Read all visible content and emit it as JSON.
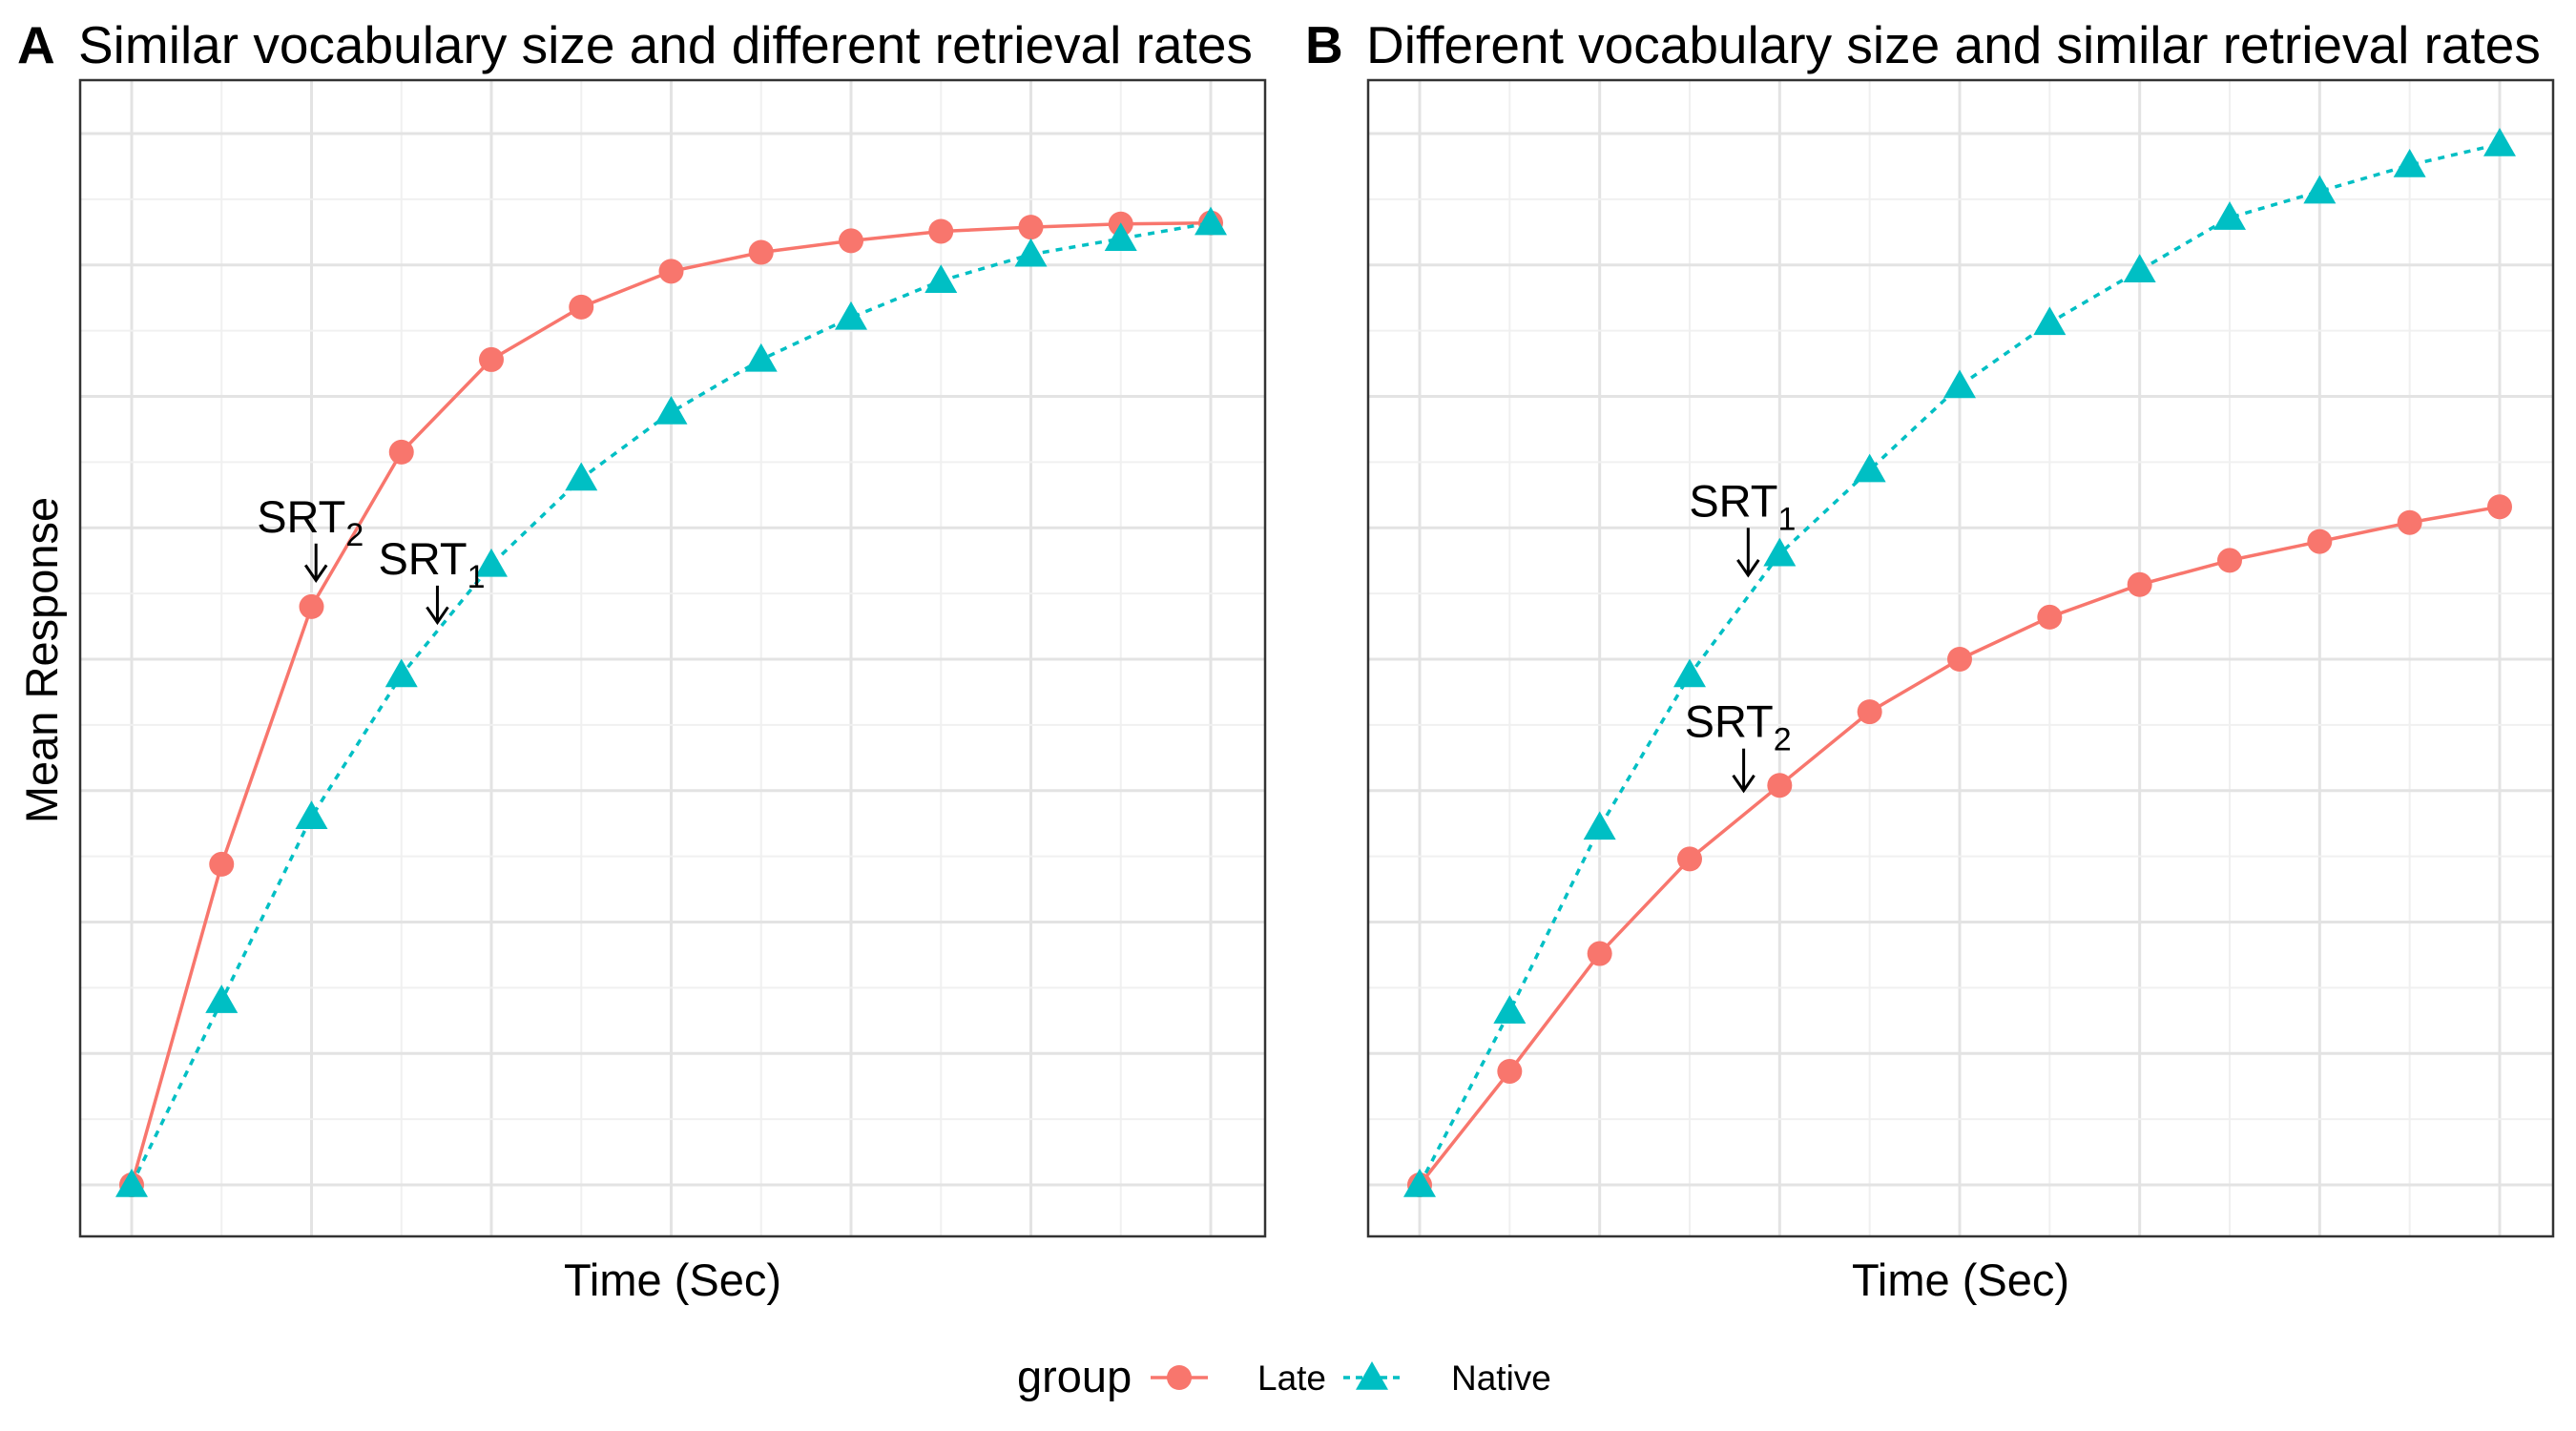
{
  "chart_data": [
    {
      "type": "line",
      "tag": "A",
      "title": "Similar vocabulary size and different retrieval rates",
      "xlabel": "Time (Sec)",
      "ylabel": "Mean Response",
      "grid": true,
      "x_ticks_labeled": false,
      "y_ticks_labeled": false,
      "xlim": [
        0,
        12
      ],
      "ylim": [
        0,
        1
      ],
      "x": [
        0,
        1,
        2,
        3,
        4,
        5,
        6,
        7,
        8,
        9,
        10,
        11,
        12
      ],
      "series": [
        {
          "name": "Late",
          "color": "#F8766D",
          "marker": "circle",
          "line": "solid",
          "values": [
            0.0,
            0.305,
            0.55,
            0.697,
            0.785,
            0.835,
            0.869,
            0.887,
            0.898,
            0.907,
            0.911,
            0.914,
            0.915
          ]
        },
        {
          "name": "Native",
          "color": "#00BFC4",
          "marker": "triangle",
          "line": "dotted",
          "values": [
            0.0,
            0.175,
            0.35,
            0.485,
            0.59,
            0.672,
            0.735,
            0.785,
            0.825,
            0.86,
            0.885,
            0.9,
            0.915
          ]
        }
      ],
      "annotations": [
        {
          "text": "SRT",
          "sub": "2",
          "x": 2.05,
          "y_top": 0.61,
          "y_tip": 0.575
        },
        {
          "text": "SRT",
          "sub": "1",
          "x": 3.4,
          "y_top": 0.57,
          "y_tip": 0.535
        }
      ]
    },
    {
      "type": "line",
      "tag": "B",
      "title": "Different vocabulary size and similar retrieval rates",
      "xlabel": "Time (Sec)",
      "ylabel": "",
      "grid": true,
      "x_ticks_labeled": false,
      "y_ticks_labeled": false,
      "xlim": [
        0,
        12
      ],
      "ylim": [
        0,
        1
      ],
      "x": [
        0,
        1,
        2,
        3,
        4,
        5,
        6,
        7,
        8,
        9,
        10,
        11,
        12
      ],
      "series": [
        {
          "name": "Late",
          "color": "#F8766D",
          "marker": "circle",
          "line": "solid",
          "values": [
            0.0,
            0.108,
            0.22,
            0.31,
            0.38,
            0.45,
            0.5,
            0.54,
            0.571,
            0.594,
            0.612,
            0.63,
            0.645
          ]
        },
        {
          "name": "Native",
          "color": "#00BFC4",
          "marker": "triangle",
          "line": "dotted",
          "values": [
            0.0,
            0.165,
            0.34,
            0.485,
            0.6,
            0.68,
            0.76,
            0.82,
            0.87,
            0.92,
            0.945,
            0.97,
            0.99
          ]
        }
      ],
      "annotations": [
        {
          "text": "SRT",
          "sub": "1",
          "x": 3.65,
          "y_top": 0.625,
          "y_tip": 0.58
        },
        {
          "text": "SRT",
          "sub": "2",
          "x": 3.6,
          "y_top": 0.415,
          "y_tip": 0.375
        }
      ]
    }
  ],
  "legend": {
    "title": "group",
    "placement": "bottom",
    "items": [
      {
        "label": "Late",
        "color": "#F8766D",
        "marker": "circle",
        "line": "solid"
      },
      {
        "label": "Native",
        "color": "#00BFC4",
        "marker": "triangle",
        "line": "dotted"
      }
    ]
  }
}
